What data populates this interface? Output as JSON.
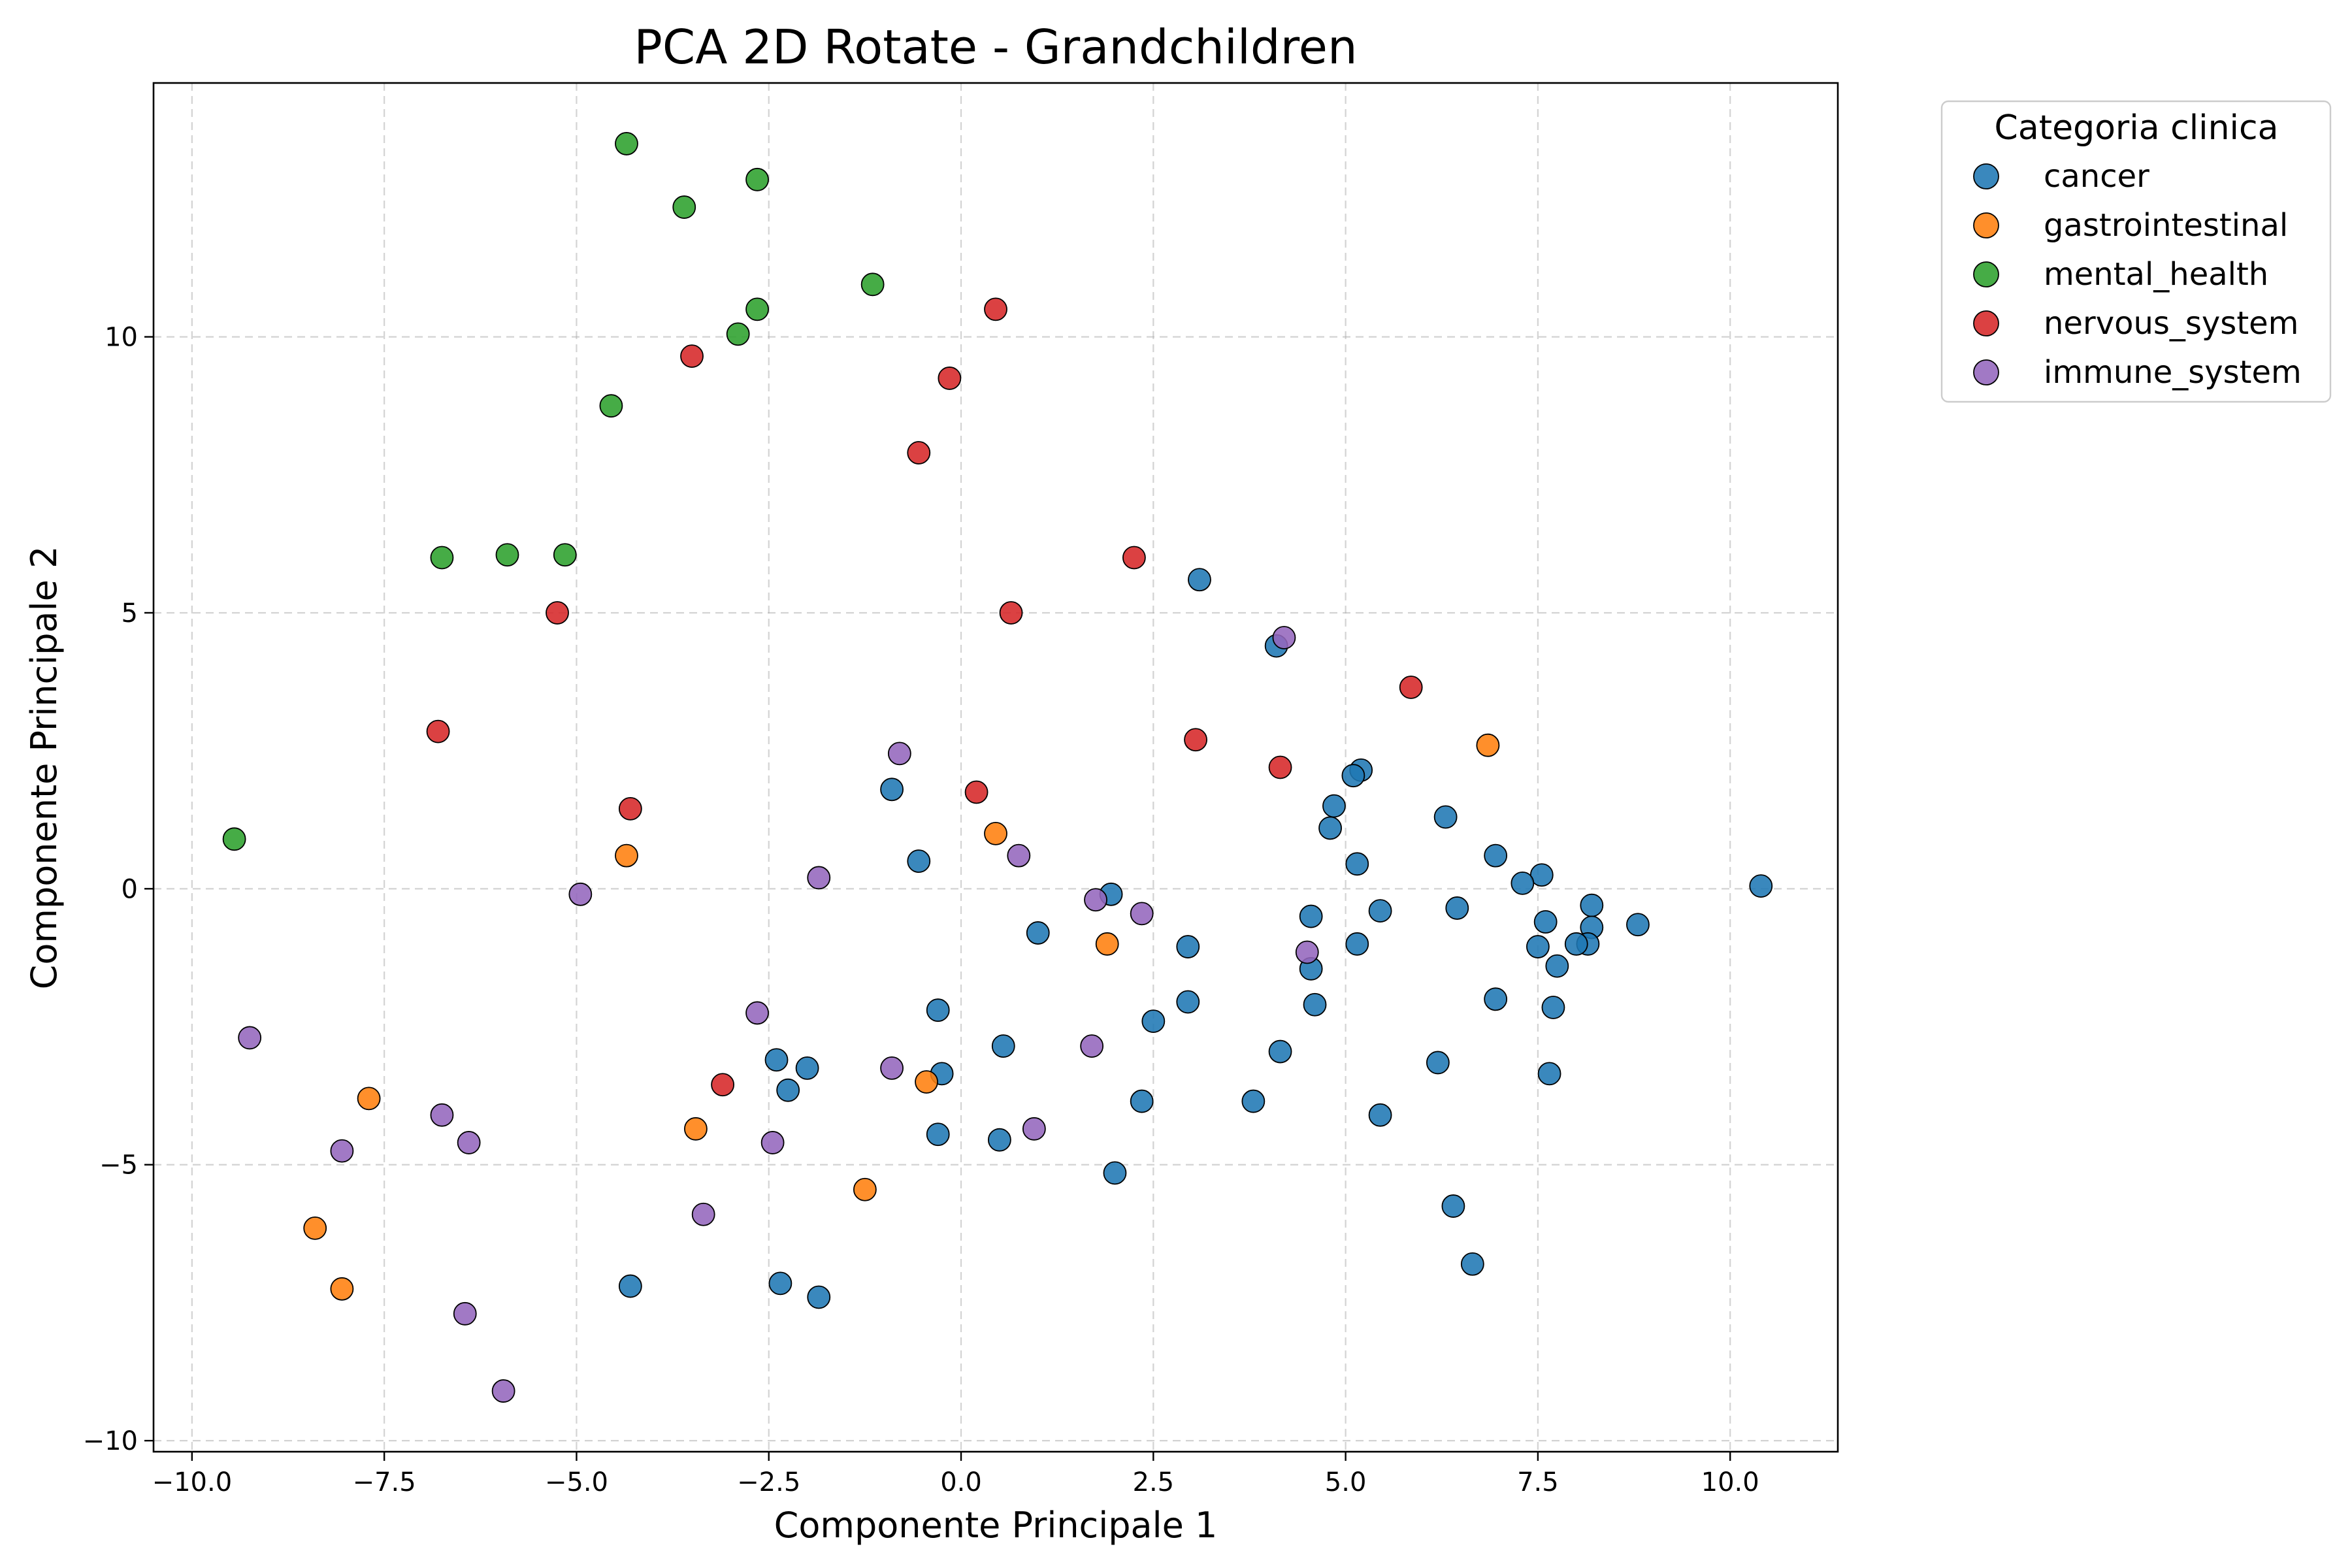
{
  "chart_data": {
    "type": "scatter",
    "title": "PCA 2D Rotate - Grandchildren",
    "xlabel": "Componente Principale 1",
    "ylabel": "Componente Principale 2",
    "xlim": [
      -10.5,
      11.4
    ],
    "ylim": [
      -10.2,
      14.6
    ],
    "xticks": [
      -10.0,
      -7.5,
      -5.0,
      -2.5,
      0.0,
      2.5,
      5.0,
      7.5,
      10.0
    ],
    "xtick_labels": [
      "−10.0",
      "−7.5",
      "−5.0",
      "−2.5",
      "0.0",
      "2.5",
      "5.0",
      "7.5",
      "10.0"
    ],
    "yticks": [
      -10,
      -5,
      0,
      5,
      10
    ],
    "ytick_labels": [
      "−10",
      "−5",
      "0",
      "5",
      "10"
    ],
    "grid": true,
    "legend": {
      "title": "Categoria clinica",
      "placement": "outside-top-right"
    },
    "series": [
      {
        "name": "cancer",
        "color": "#1f77b4",
        "points": [
          [
            10.4,
            0.05
          ],
          [
            8.8,
            -0.65
          ],
          [
            8.2,
            -0.3
          ],
          [
            8.2,
            -0.7
          ],
          [
            8.15,
            -1.0
          ],
          [
            8.0,
            -1.0
          ],
          [
            7.75,
            -1.4
          ],
          [
            7.7,
            -2.15
          ],
          [
            7.65,
            -3.35
          ],
          [
            7.6,
            -0.6
          ],
          [
            7.55,
            0.25
          ],
          [
            7.5,
            -1.05
          ],
          [
            7.3,
            0.1
          ],
          [
            6.95,
            0.6
          ],
          [
            6.95,
            -2.0
          ],
          [
            6.65,
            -6.8
          ],
          [
            6.45,
            -0.35
          ],
          [
            6.4,
            -5.75
          ],
          [
            6.3,
            1.3
          ],
          [
            6.2,
            -3.15
          ],
          [
            5.45,
            -0.4
          ],
          [
            5.45,
            -4.1
          ],
          [
            5.2,
            2.15
          ],
          [
            5.15,
            -1.0
          ],
          [
            5.15,
            0.45
          ],
          [
            5.1,
            2.05
          ],
          [
            4.85,
            1.5
          ],
          [
            4.8,
            1.1
          ],
          [
            4.6,
            -2.1
          ],
          [
            4.55,
            -0.5
          ],
          [
            4.55,
            -1.45
          ],
          [
            4.15,
            -2.95
          ],
          [
            4.1,
            4.4
          ],
          [
            3.8,
            -3.85
          ],
          [
            3.1,
            5.6
          ],
          [
            2.95,
            -1.05
          ],
          [
            2.95,
            -2.05
          ],
          [
            2.5,
            -2.4
          ],
          [
            2.35,
            -3.85
          ],
          [
            2.0,
            -5.15
          ],
          [
            1.95,
            -0.1
          ],
          [
            1.0,
            -0.8
          ],
          [
            0.55,
            -2.85
          ],
          [
            0.5,
            -4.55
          ],
          [
            -0.25,
            -3.35
          ],
          [
            -0.3,
            -2.2
          ],
          [
            -0.3,
            -4.45
          ],
          [
            -0.55,
            0.5
          ],
          [
            -0.9,
            1.8
          ],
          [
            -2.0,
            -3.25
          ],
          [
            -2.25,
            -3.65
          ],
          [
            -2.4,
            -3.1
          ],
          [
            -2.35,
            -7.15
          ],
          [
            -1.85,
            -7.4
          ],
          [
            -4.3,
            -7.2
          ]
        ]
      },
      {
        "name": "gastrointestinal",
        "color": "#ff7f0e",
        "points": [
          [
            6.85,
            2.6
          ],
          [
            1.9,
            -1.0
          ],
          [
            0.45,
            1.0
          ],
          [
            -0.45,
            -3.5
          ],
          [
            -1.25,
            -5.45
          ],
          [
            -3.45,
            -4.35
          ],
          [
            -4.35,
            0.6
          ],
          [
            -7.7,
            -3.8
          ],
          [
            -8.4,
            -6.15
          ],
          [
            -8.05,
            -7.25
          ]
        ]
      },
      {
        "name": "mental_health",
        "color": "#2ca02c",
        "points": [
          [
            -4.35,
            13.5
          ],
          [
            -2.65,
            12.85
          ],
          [
            -3.6,
            12.35
          ],
          [
            -1.15,
            10.95
          ],
          [
            -2.65,
            10.5
          ],
          [
            -2.9,
            10.05
          ],
          [
            -4.55,
            8.75
          ],
          [
            -5.15,
            6.05
          ],
          [
            -5.9,
            6.05
          ],
          [
            -6.75,
            6.0
          ],
          [
            -9.45,
            0.9
          ]
        ]
      },
      {
        "name": "nervous_system",
        "color": "#d62728",
        "points": [
          [
            0.45,
            10.5
          ],
          [
            -0.15,
            9.25
          ],
          [
            -3.5,
            9.65
          ],
          [
            -0.55,
            7.9
          ],
          [
            2.25,
            6.0
          ],
          [
            0.65,
            5.0
          ],
          [
            -5.25,
            5.0
          ],
          [
            5.85,
            3.65
          ],
          [
            3.05,
            2.7
          ],
          [
            4.15,
            2.2
          ],
          [
            0.2,
            1.75
          ],
          [
            -4.3,
            1.45
          ],
          [
            -6.8,
            2.85
          ],
          [
            -3.1,
            -3.55
          ]
        ]
      },
      {
        "name": "immune_system",
        "color": "#9467bd",
        "points": [
          [
            4.2,
            4.55
          ],
          [
            -0.8,
            2.45
          ],
          [
            0.75,
            0.6
          ],
          [
            -1.85,
            0.2
          ],
          [
            -4.95,
            -0.1
          ],
          [
            1.75,
            -0.2
          ],
          [
            2.35,
            -0.45
          ],
          [
            4.5,
            -1.15
          ],
          [
            -2.65,
            -2.25
          ],
          [
            1.7,
            -2.85
          ],
          [
            -0.9,
            -3.25
          ],
          [
            0.95,
            -4.35
          ],
          [
            -2.45,
            -4.6
          ],
          [
            -6.75,
            -4.1
          ],
          [
            -6.4,
            -4.6
          ],
          [
            -8.05,
            -4.75
          ],
          [
            -9.25,
            -2.7
          ],
          [
            -3.35,
            -5.9
          ],
          [
            -6.45,
            -7.7
          ],
          [
            -5.95,
            -9.1
          ]
        ]
      }
    ]
  }
}
